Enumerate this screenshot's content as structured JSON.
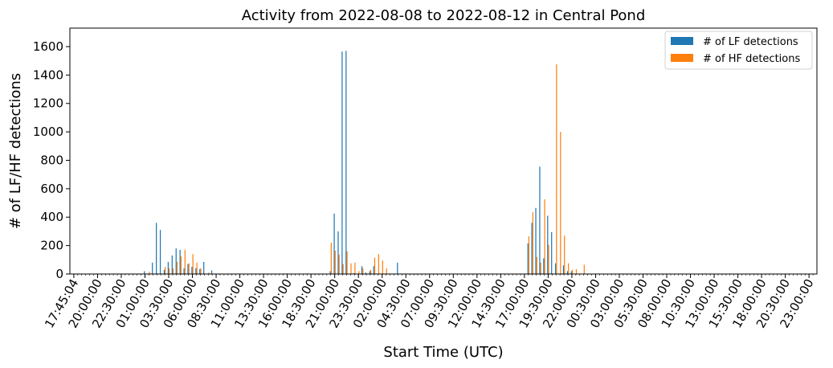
{
  "chart_data": {
    "type": "bar",
    "title": "Activity from 2022-08-08 to 2022-08-12 in Central Pond",
    "xlabel": "Start Time (UTC)",
    "ylabel": "# of LF/HF detections",
    "ylim": [
      0,
      1730
    ],
    "yticks": [
      0,
      200,
      400,
      600,
      800,
      1000,
      1200,
      1400,
      1600
    ],
    "xtick_labels": [
      "17:45:04",
      "20:00:00",
      "22:30:00",
      "01:00:00",
      "03:30:00",
      "06:00:00",
      "08:30:00",
      "11:00:00",
      "13:30:00",
      "16:00:00",
      "18:30:00",
      "21:00:00",
      "23:30:00",
      "02:00:00",
      "04:30:00",
      "07:00:00",
      "09:30:00",
      "12:00:00",
      "14:30:00",
      "17:00:00",
      "19:30:00",
      "22:00:00",
      "00:30:00",
      "03:00:00",
      "05:30:00",
      "08:00:00",
      "10:30:00",
      "13:00:00",
      "15:30:00",
      "18:00:00",
      "20:30:00",
      "23:00:00"
    ],
    "x_start": "2022-08-08 17:45:04",
    "bin_minutes": 30,
    "n_bins": 188,
    "grid": false,
    "legend_position": "top-right",
    "series": [
      {
        "name": "# of LF detections",
        "color": "#1f77b4",
        "nonzero": {
          "2022-08-09 03:15": 20,
          "2022-08-09 04:15": 80,
          "2022-08-09 04:45": 360,
          "2022-08-09 05:15": 310,
          "2022-08-09 05:45": 30,
          "2022-08-09 06:15": 85,
          "2022-08-09 06:45": 130,
          "2022-08-09 07:15": 180,
          "2022-08-09 07:45": 170,
          "2022-08-09 08:15": 40,
          "2022-08-09 08:45": 70,
          "2022-08-09 09:15": 50,
          "2022-08-09 09:45": 40,
          "2022-08-09 10:15": 35,
          "2022-08-09 10:45": 85,
          "2022-08-09 11:45": 25,
          "2022-08-10 02:45": 20,
          "2022-08-10 03:15": 425,
          "2022-08-10 03:45": 300,
          "2022-08-10 04:15": 1565,
          "2022-08-10 04:45": 1570,
          "2022-08-10 05:45": 5,
          "2022-08-10 06:45": 55,
          "2022-08-10 07:15": 10,
          "2022-08-10 07:45": 20,
          "2022-08-10 08:15": 55,
          "2022-08-10 11:15": 80,
          "2022-08-11 03:45": 215,
          "2022-08-11 04:15": 360,
          "2022-08-11 04:45": 465,
          "2022-08-11 05:15": 755,
          "2022-08-11 05:45": 110,
          "2022-08-11 06:15": 410,
          "2022-08-11 06:45": 295,
          "2022-08-11 07:15": 75,
          "2022-08-11 08:15": 60,
          "2022-08-11 08:45": 20,
          "2022-08-11 09:15": 20
        }
      },
      {
        "name": "# of HF detections",
        "color": "#ff7f0e",
        "nonzero": {
          "2022-08-09 03:45": 15,
          "2022-08-09 05:45": 50,
          "2022-08-09 06:15": 40,
          "2022-08-09 06:45": 40,
          "2022-08-09 07:15": 85,
          "2022-08-09 07:45": 125,
          "2022-08-09 08:15": 170,
          "2022-08-09 08:45": 75,
          "2022-08-09 09:15": 140,
          "2022-08-09 09:45": 80,
          "2022-08-09 10:15": 40,
          "2022-08-09 11:15": 10,
          "2022-08-10 02:45": 220,
          "2022-08-10 03:15": 165,
          "2022-08-10 03:45": 135,
          "2022-08-10 04:15": 70,
          "2022-08-10 04:45": 160,
          "2022-08-10 05:15": 75,
          "2022-08-10 05:45": 80,
          "2022-08-10 06:15": 20,
          "2022-08-10 06:45": 40,
          "2022-08-10 07:45": 30,
          "2022-08-10 08:15": 115,
          "2022-08-10 08:45": 140,
          "2022-08-10 09:15": 95,
          "2022-08-10 09:45": 40,
          "2022-08-11 03:45": 265,
          "2022-08-11 04:15": 435,
          "2022-08-11 04:45": 120,
          "2022-08-11 05:15": 80,
          "2022-08-11 05:45": 525,
          "2022-08-11 06:15": 205,
          "2022-08-11 07:15": 1475,
          "2022-08-11 07:45": 1000,
          "2022-08-11 08:15": 270,
          "2022-08-11 08:45": 75,
          "2022-08-11 09:15": 30,
          "2022-08-11 09:45": 35,
          "2022-08-11 10:45": 65
        }
      }
    ]
  }
}
